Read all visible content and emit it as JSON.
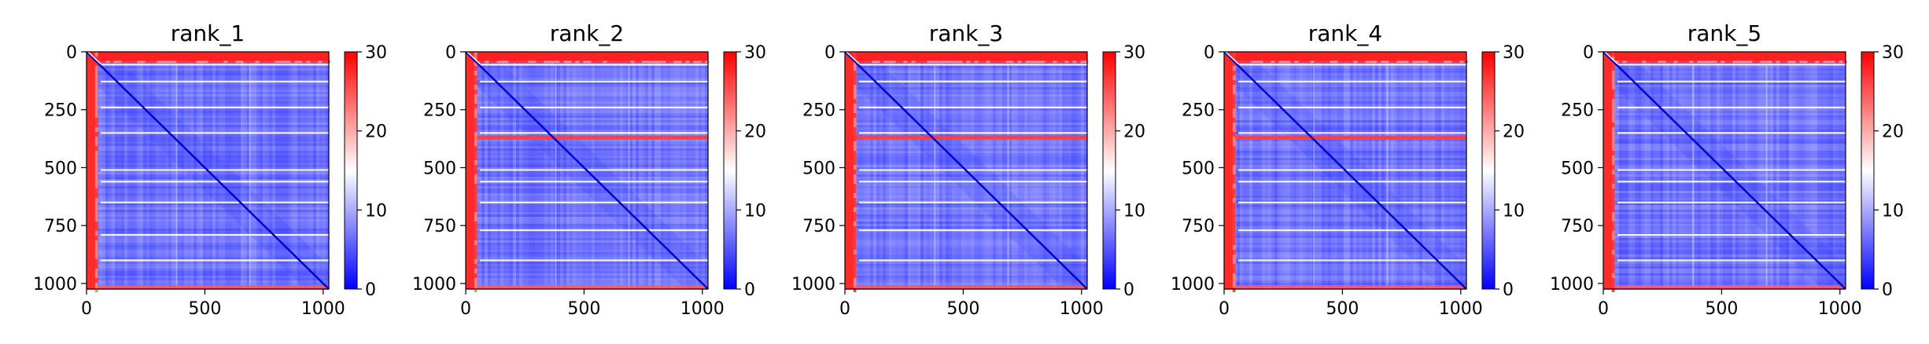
{
  "chart_data": [
    {
      "type": "heatmap",
      "title": "rank_1",
      "x_ticks": [
        0,
        500,
        1000
      ],
      "y_ticks": [
        0,
        250,
        500,
        750,
        1000
      ],
      "xlim": [
        0,
        1024
      ],
      "ylim": [
        1024,
        0
      ],
      "colorbar": {
        "ticks": [
          0,
          10,
          20,
          30
        ],
        "range": [
          0,
          30
        ],
        "colors": [
          "#0000ff",
          "#ffffff",
          "#ff0000"
        ]
      },
      "features": {
        "red_rows": [
          0,
          1016
        ],
        "red_cols": [
          0
        ],
        "white_lines": [
          55,
          128,
          240,
          350,
          510,
          560,
          650,
          790,
          900
        ]
      }
    },
    {
      "type": "heatmap",
      "title": "rank_2",
      "x_ticks": [
        0,
        500,
        1000
      ],
      "y_ticks": [
        0,
        250,
        500,
        750,
        1000
      ],
      "xlim": [
        0,
        1024
      ],
      "ylim": [
        1024,
        0
      ],
      "colorbar": {
        "ticks": [
          0,
          10,
          20,
          30
        ],
        "range": [
          0,
          30
        ],
        "colors": [
          "#0000ff",
          "#ffffff",
          "#ff0000"
        ]
      },
      "features": {
        "red_rows": [
          0,
          1016,
          370
        ],
        "red_cols": [
          0
        ],
        "white_lines": [
          55,
          128,
          240,
          350,
          510,
          560,
          650,
          770,
          900
        ]
      }
    },
    {
      "type": "heatmap",
      "title": "rank_3",
      "x_ticks": [
        0,
        500,
        1000
      ],
      "y_ticks": [
        0,
        250,
        500,
        750,
        1000
      ],
      "xlim": [
        0,
        1024
      ],
      "ylim": [
        1024,
        0
      ],
      "colorbar": {
        "ticks": [
          0,
          10,
          20,
          30
        ],
        "range": [
          0,
          30
        ],
        "colors": [
          "#0000ff",
          "#ffffff",
          "#ff0000"
        ]
      },
      "features": {
        "red_rows": [
          0,
          1016,
          370
        ],
        "red_cols": [
          0
        ],
        "white_lines": [
          55,
          128,
          240,
          350,
          510,
          560,
          650,
          770,
          900
        ]
      }
    },
    {
      "type": "heatmap",
      "title": "rank_4",
      "x_ticks": [
        0,
        500,
        1000
      ],
      "y_ticks": [
        0,
        250,
        500,
        750,
        1000
      ],
      "xlim": [
        0,
        1024
      ],
      "ylim": [
        1024,
        0
      ],
      "colorbar": {
        "ticks": [
          0,
          10,
          20,
          30
        ],
        "range": [
          0,
          30
        ],
        "colors": [
          "#0000ff",
          "#ffffff",
          "#ff0000"
        ]
      },
      "features": {
        "red_rows": [
          0,
          1016,
          370
        ],
        "red_cols": [
          0
        ],
        "white_lines": [
          55,
          128,
          240,
          350,
          510,
          560,
          650,
          770,
          900
        ]
      }
    },
    {
      "type": "heatmap",
      "title": "rank_5",
      "x_ticks": [
        0,
        500,
        1000
      ],
      "y_ticks": [
        0,
        250,
        500,
        750,
        1000
      ],
      "xlim": [
        0,
        1024
      ],
      "ylim": [
        1024,
        0
      ],
      "colorbar": {
        "ticks": [
          0,
          10,
          20,
          30
        ],
        "range": [
          0,
          30
        ],
        "colors": [
          "#0000ff",
          "#ffffff",
          "#ff0000"
        ]
      },
      "features": {
        "red_rows": [
          0,
          1016
        ],
        "red_cols": [
          0
        ],
        "white_lines": [
          55,
          128,
          240,
          350,
          510,
          560,
          650,
          790,
          900
        ]
      }
    }
  ]
}
